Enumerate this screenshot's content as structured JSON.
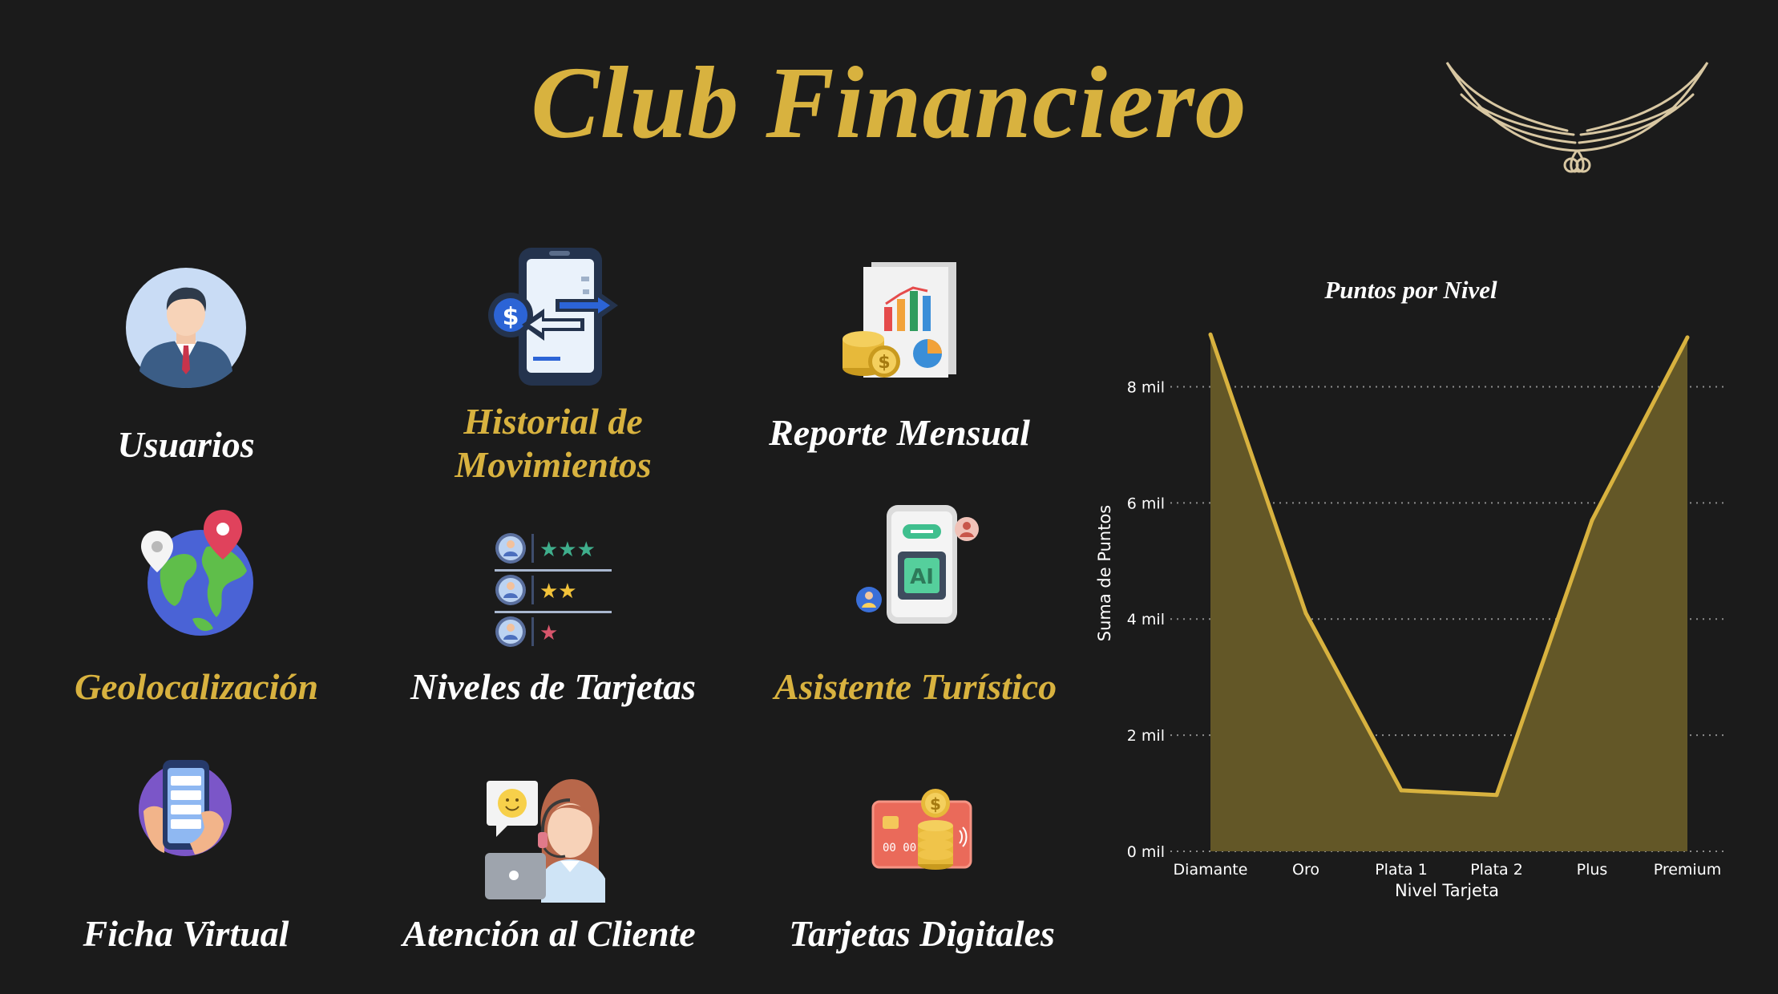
{
  "header": {
    "title": "Club Financiero",
    "logo_icon": "wings-logo-icon"
  },
  "tiles": [
    {
      "label": "Usuarios",
      "icon": "business-user-icon",
      "color": "#ffffff"
    },
    {
      "label": "Historial de Movimientos",
      "label_line1": "Historial de",
      "label_line2": "Movimientos",
      "icon": "phone-transfer-icon",
      "color": "#d8b23f"
    },
    {
      "label": "Reporte Mensual",
      "icon": "report-chart-coins-icon",
      "color": "#ffffff"
    },
    {
      "label": "Geolocalización",
      "icon": "globe-location-icon",
      "color": "#d8b23f"
    },
    {
      "label": "Niveles de Tarjetas",
      "icon": "rating-levels-icon",
      "color": "#ffffff"
    },
    {
      "label": "Asistente Turístico",
      "icon": "ai-assistant-phone-icon",
      "color": "#d8b23f"
    },
    {
      "label": "Ficha Virtual",
      "icon": "hand-phone-list-icon",
      "color": "#ffffff"
    },
    {
      "label": "Atención al Cliente",
      "icon": "customer-support-icon",
      "color": "#ffffff"
    },
    {
      "label": "Tarjetas Digitales",
      "icon": "credit-card-coins-icon",
      "color": "#ffffff"
    }
  ],
  "chart_data": {
    "type": "area",
    "title": "Puntos por Nivel",
    "xlabel": "Nivel Tarjeta",
    "ylabel": "Suma de Puntos",
    "categories": [
      "Diamante",
      "Oro",
      "Plata 1",
      "Plata 2",
      "Plus",
      "Premium"
    ],
    "values": [
      8900,
      4100,
      1050,
      970,
      5700,
      8850
    ],
    "ylim": [
      0,
      9000
    ],
    "yticks": [
      0,
      2000,
      4000,
      6000,
      8000
    ],
    "ytick_labels": [
      "0 mil",
      "2 mil",
      "4 mil",
      "6 mil",
      "8 mil"
    ],
    "grid": true,
    "line_color": "#d8b23f",
    "fill_color": "#635727"
  }
}
